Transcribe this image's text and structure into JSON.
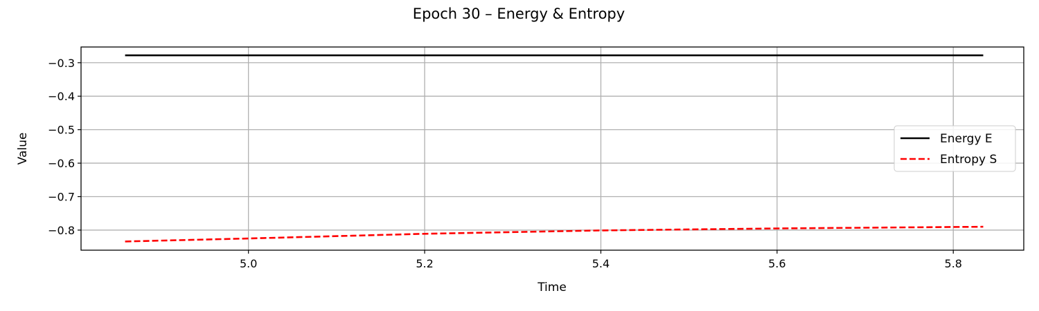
{
  "chart_data": {
    "type": "line",
    "title": "Epoch 30 – Energy & Entropy",
    "xlabel": "Time",
    "ylabel": "Value",
    "xlim": [
      4.81,
      5.88
    ],
    "ylim": [
      -0.86,
      -0.253
    ],
    "xticks": [
      5.0,
      5.2,
      5.4,
      5.6,
      5.8
    ],
    "xtick_labels": [
      "5.0",
      "5.2",
      "5.4",
      "5.6",
      "5.8"
    ],
    "yticks": [
      -0.3,
      -0.4,
      -0.5,
      -0.6,
      -0.7,
      -0.8
    ],
    "ytick_labels": [
      "−0.3",
      "−0.4",
      "−0.5",
      "−0.6",
      "−0.7",
      "−0.8"
    ],
    "grid": true,
    "legend_position": "center-right",
    "series": [
      {
        "name": "Energy E",
        "color": "#000000",
        "style": "solid",
        "x": [
          4.86,
          5.0,
          5.2,
          5.4,
          5.6,
          5.834
        ],
        "y": [
          -0.278,
          -0.278,
          -0.278,
          -0.278,
          -0.278,
          -0.278
        ]
      },
      {
        "name": "Entropy S",
        "color": "#ff0000",
        "style": "dashed",
        "x": [
          4.86,
          5.0,
          5.2,
          5.4,
          5.6,
          5.834
        ],
        "y": [
          -0.834,
          -0.825,
          -0.811,
          -0.801,
          -0.795,
          -0.79
        ]
      }
    ]
  }
}
